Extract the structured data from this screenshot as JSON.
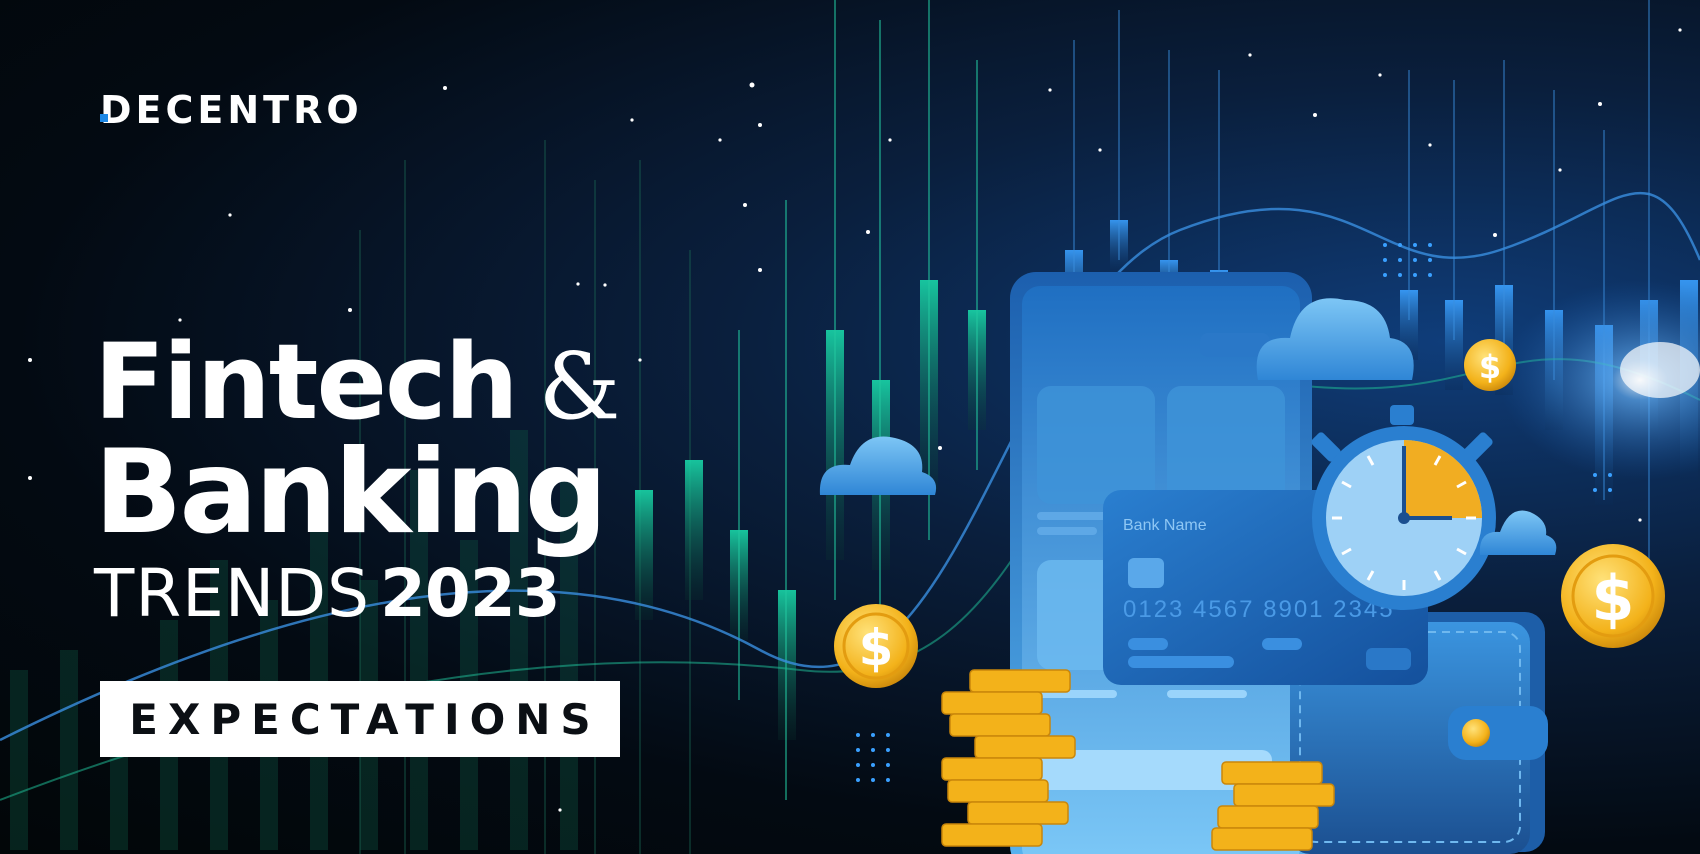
{
  "brand": {
    "name": "DECENTRO",
    "accent_color": "#1e88e5"
  },
  "headline": {
    "line1_main": "Fintech",
    "line1_amp": "&",
    "line2": "Banking",
    "line3_word": "TRENDS",
    "line3_year": "2023"
  },
  "badge": {
    "label": "EXPECTATIONS"
  },
  "card": {
    "bank_name": "Bank Name",
    "number": "0123 4567 8901 2345"
  },
  "coin_symbol": "$",
  "icons": [
    "cloud-icon",
    "coin-icon",
    "stopwatch-icon",
    "phone-icon",
    "credit-card-icon",
    "wallet-icon",
    "coin-stack-icon"
  ]
}
